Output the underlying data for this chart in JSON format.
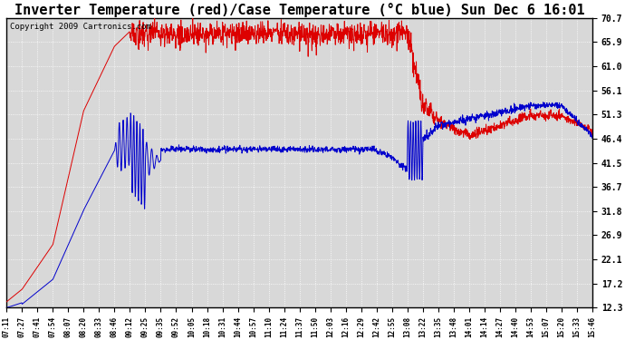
{
  "title": "Inverter Temperature (red)/Case Temperature (°C blue) Sun Dec 6 16:01",
  "copyright": "Copyright 2009 Cartronics.com",
  "yticks": [
    12.3,
    17.2,
    22.1,
    26.9,
    31.8,
    36.7,
    41.5,
    46.4,
    51.3,
    56.1,
    61.0,
    65.9,
    70.7
  ],
  "ymin": 12.3,
  "ymax": 70.7,
  "xtick_labels": [
    "07:11",
    "07:27",
    "07:41",
    "07:54",
    "08:07",
    "08:20",
    "08:33",
    "08:46",
    "09:12",
    "09:25",
    "09:35",
    "09:52",
    "10:05",
    "10:18",
    "10:31",
    "10:44",
    "10:57",
    "11:10",
    "11:24",
    "11:37",
    "11:50",
    "12:03",
    "12:16",
    "12:29",
    "12:42",
    "12:55",
    "13:08",
    "13:22",
    "13:35",
    "13:48",
    "14:01",
    "14:14",
    "14:27",
    "14:40",
    "14:53",
    "15:07",
    "15:20",
    "15:33",
    "15:46"
  ],
  "n_xticks": 39,
  "bg_color": "#ffffff",
  "plot_bg_color": "#d8d8d8",
  "grid_color": "#ffffff",
  "title_font_size": 11,
  "copyright_font_size": 6.5,
  "red_line_color": "#dd0000",
  "blue_line_color": "#0000cc",
  "figwidth": 6.9,
  "figheight": 3.75,
  "dpi": 100
}
